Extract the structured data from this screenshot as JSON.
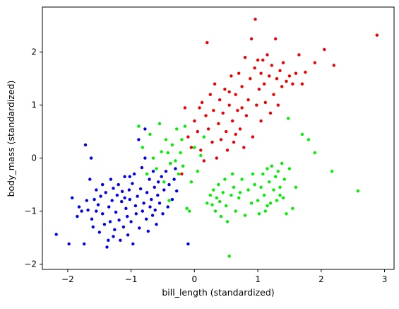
{
  "chart_data": {
    "type": "scatter",
    "title": "",
    "xlabel": "bill_length (standardized)",
    "ylabel": "body_mass (standardized)",
    "xlim": [
      -2.4,
      3.15
    ],
    "ylim": [
      -2.1,
      2.85
    ],
    "xticks": [
      -2,
      -1,
      0,
      1,
      2,
      3
    ],
    "yticks": [
      -2,
      -1,
      0,
      1,
      2
    ],
    "xtick_labels": [
      "−2",
      "−1",
      "0",
      "1",
      "2",
      "3"
    ],
    "ytick_labels": [
      "−2",
      "−1",
      "0",
      "1",
      "2"
    ],
    "grid": false,
    "legend": "none",
    "series": [
      {
        "color": "#0000ee",
        "points": [
          [
            -2.18,
            -1.44
          ],
          [
            -1.98,
            -1.62
          ],
          [
            -1.93,
            -0.75
          ],
          [
            -1.85,
            -1.1
          ],
          [
            -1.82,
            -0.92
          ],
          [
            -1.78,
            -1.0
          ],
          [
            -1.74,
            -1.62
          ],
          [
            -1.72,
            0.25
          ],
          [
            -1.7,
            -0.8
          ],
          [
            -1.68,
            -0.98
          ],
          [
            -1.65,
            -0.4
          ],
          [
            -1.63,
            0.0
          ],
          [
            -1.62,
            -1.15
          ],
          [
            -1.6,
            -1.3
          ],
          [
            -1.58,
            -0.78
          ],
          [
            -1.55,
            -1.0
          ],
          [
            -1.55,
            -0.6
          ],
          [
            -1.52,
            -0.88
          ],
          [
            -1.5,
            -1.4
          ],
          [
            -1.48,
            -0.72
          ],
          [
            -1.45,
            -1.05
          ],
          [
            -1.45,
            -0.5
          ],
          [
            -1.42,
            -1.25
          ],
          [
            -1.4,
            -0.65
          ],
          [
            -1.38,
            -1.68
          ],
          [
            -1.36,
            -1.55
          ],
          [
            -1.35,
            -0.92
          ],
          [
            -1.33,
            -1.2
          ],
          [
            -1.32,
            -0.4
          ],
          [
            -1.3,
            -0.8
          ],
          [
            -1.28,
            -1.48
          ],
          [
            -1.28,
            -0.57
          ],
          [
            -1.26,
            -1.35
          ],
          [
            -1.24,
            -1.02
          ],
          [
            -1.22,
            -0.7
          ],
          [
            -1.2,
            -0.5
          ],
          [
            -1.19,
            -1.17
          ],
          [
            -1.17,
            -1.55
          ],
          [
            -1.15,
            -0.82
          ],
          [
            -1.14,
            -0.63
          ],
          [
            -1.12,
            -1.3
          ],
          [
            -1.1,
            -0.35
          ],
          [
            -1.08,
            -0.95
          ],
          [
            -1.06,
            -1.1
          ],
          [
            -1.05,
            -1.45
          ],
          [
            -1.03,
            -0.6
          ],
          [
            -1.02,
            -0.78
          ],
          [
            -1.0,
            -1.2
          ],
          [
            -0.98,
            -0.48
          ],
          [
            -0.97,
            -1.62
          ],
          [
            -0.95,
            -0.3
          ],
          [
            -0.93,
            -0.9
          ],
          [
            -0.92,
            -1.05
          ],
          [
            -0.9,
            -0.72
          ],
          [
            -0.88,
            0.35
          ],
          [
            -0.87,
            -1.32
          ],
          [
            -0.85,
            -0.58
          ],
          [
            -0.83,
            -0.18
          ],
          [
            -0.82,
            -1.0
          ],
          [
            -0.8,
            -0.85
          ],
          [
            -0.78,
            0.0
          ],
          [
            -0.76,
            -1.15
          ],
          [
            -0.75,
            -0.65
          ],
          [
            -0.73,
            -1.38
          ],
          [
            -0.71,
            -0.4
          ],
          [
            -0.7,
            -0.92
          ],
          [
            -0.68,
            -0.78
          ],
          [
            -0.66,
            -1.08
          ],
          [
            -0.65,
            -0.25
          ],
          [
            -0.63,
            -0.55
          ],
          [
            -0.62,
            -0.98
          ],
          [
            -0.6,
            -1.25
          ],
          [
            -0.58,
            -0.7
          ],
          [
            -0.57,
            -0.45
          ],
          [
            -0.55,
            -0.85
          ],
          [
            -0.52,
            -0.35
          ],
          [
            -0.5,
            -1.05
          ],
          [
            -0.48,
            -0.6
          ],
          [
            -0.45,
            -0.25
          ],
          [
            -0.42,
            -0.92
          ],
          [
            -0.4,
            -0.5
          ],
          [
            -0.38,
            -0.1
          ],
          [
            -0.35,
            -0.78
          ],
          [
            -0.32,
            -0.4
          ],
          [
            -0.3,
            -0.2
          ],
          [
            -0.28,
            -0.62
          ],
          [
            -0.1,
            -1.62
          ],
          [
            -0.78,
            0.55
          ],
          [
            -1.02,
            -0.35
          ],
          [
            -1.1,
            -0.75
          ]
        ]
      },
      {
        "color": "#00ee00",
        "points": [
          [
            -0.88,
            0.6
          ],
          [
            -0.82,
            0.2
          ],
          [
            -0.75,
            -0.3
          ],
          [
            -0.7,
            0.45
          ],
          [
            -0.65,
            0.0
          ],
          [
            -0.6,
            -0.2
          ],
          [
            -0.55,
            0.65
          ],
          [
            -0.52,
            0.12
          ],
          [
            -0.48,
            -0.45
          ],
          [
            -0.45,
            0.35
          ],
          [
            -0.42,
            0.1
          ],
          [
            -0.4,
            -0.8
          ],
          [
            -0.38,
            -0.1
          ],
          [
            -0.35,
            0.25
          ],
          [
            -0.3,
            -0.05
          ],
          [
            -0.28,
            0.55
          ],
          [
            -0.25,
            -0.3
          ],
          [
            -0.22,
            0.1
          ],
          [
            -0.2,
            0.35
          ],
          [
            -0.18,
            -0.15
          ],
          [
            -0.15,
            0.6
          ],
          [
            -0.12,
            -0.95
          ],
          [
            -0.08,
            -1.0
          ],
          [
            -0.05,
            -0.45
          ],
          [
            0.0,
            0.2
          ],
          [
            0.05,
            -0.25
          ],
          [
            0.1,
            0.05
          ],
          [
            0.15,
            0.4
          ],
          [
            0.2,
            -0.85
          ],
          [
            0.25,
            -0.7
          ],
          [
            0.28,
            -0.88
          ],
          [
            0.3,
            -0.6
          ],
          [
            0.33,
            -1.0
          ],
          [
            0.35,
            -0.75
          ],
          [
            0.38,
            -0.5
          ],
          [
            0.4,
            -0.82
          ],
          [
            0.42,
            -1.1
          ],
          [
            0.45,
            -0.65
          ],
          [
            0.48,
            -0.4
          ],
          [
            0.5,
            -0.9
          ],
          [
            0.52,
            -1.2
          ],
          [
            0.55,
            -1.85
          ],
          [
            0.58,
            -0.7
          ],
          [
            0.6,
            -0.3
          ],
          [
            0.62,
            -0.55
          ],
          [
            0.65,
            -1.0
          ],
          [
            0.7,
            -0.75
          ],
          [
            0.75,
            -0.4
          ],
          [
            0.8,
            -1.08
          ],
          [
            0.85,
            -0.6
          ],
          [
            0.9,
            -0.85
          ],
          [
            0.92,
            -0.3
          ],
          [
            0.95,
            -0.5
          ],
          [
            1.0,
            -0.8
          ],
          [
            1.02,
            -1.05
          ],
          [
            1.05,
            -0.55
          ],
          [
            1.08,
            -0.3
          ],
          [
            1.1,
            -0.7
          ],
          [
            1.12,
            -1.0
          ],
          [
            1.15,
            -0.2
          ],
          [
            1.18,
            -0.45
          ],
          [
            1.2,
            -0.85
          ],
          [
            1.22,
            -0.15
          ],
          [
            1.25,
            -0.6
          ],
          [
            1.28,
            -0.35
          ],
          [
            1.3,
            -0.8
          ],
          [
            1.32,
            -0.25
          ],
          [
            1.35,
            -0.55
          ],
          [
            1.38,
            -0.1
          ],
          [
            1.4,
            -0.75
          ],
          [
            1.42,
            -0.4
          ],
          [
            1.45,
            -1.05
          ],
          [
            1.48,
            0.75
          ],
          [
            1.5,
            -0.2
          ],
          [
            1.55,
            -0.95
          ],
          [
            1.6,
            -0.55
          ],
          [
            1.7,
            0.45
          ],
          [
            1.8,
            0.35
          ],
          [
            1.9,
            0.1
          ],
          [
            2.17,
            -0.25
          ],
          [
            2.58,
            -0.62
          ],
          [
            1.35,
            -0.7
          ],
          [
            0.72,
            -0.65
          ],
          [
            1.15,
            -0.9
          ]
        ]
      },
      {
        "color": "#ee0000",
        "points": [
          [
            -0.2,
            -0.3
          ],
          [
            -0.15,
            0.95
          ],
          [
            -0.1,
            0.4
          ],
          [
            -0.05,
            0.2
          ],
          [
            0.0,
            0.7
          ],
          [
            0.05,
            0.5
          ],
          [
            0.08,
            0.95
          ],
          [
            0.1,
            0.15
          ],
          [
            0.12,
            1.05
          ],
          [
            0.15,
            -0.05
          ],
          [
            0.18,
            0.8
          ],
          [
            0.2,
            2.18
          ],
          [
            0.22,
            0.55
          ],
          [
            0.25,
            1.2
          ],
          [
            0.28,
            0.3
          ],
          [
            0.3,
            0.9
          ],
          [
            0.32,
            1.4
          ],
          [
            0.35,
            0.0
          ],
          [
            0.38,
            0.65
          ],
          [
            0.4,
            1.1
          ],
          [
            0.42,
            0.35
          ],
          [
            0.45,
            0.85
          ],
          [
            0.48,
            1.3
          ],
          [
            0.5,
            0.5
          ],
          [
            0.52,
            0.15
          ],
          [
            0.55,
            1.0
          ],
          [
            0.58,
            1.55
          ],
          [
            0.6,
            0.7
          ],
          [
            0.62,
            0.3
          ],
          [
            0.65,
            1.2
          ],
          [
            0.68,
            0.9
          ],
          [
            0.7,
            1.6
          ],
          [
            0.72,
            0.55
          ],
          [
            0.75,
            1.35
          ],
          [
            0.78,
            0.2
          ],
          [
            0.8,
            1.9
          ],
          [
            0.82,
            0.8
          ],
          [
            0.85,
            1.1
          ],
          [
            0.88,
            1.5
          ],
          [
            0.9,
            2.25
          ],
          [
            0.92,
            0.4
          ],
          [
            0.95,
            1.7
          ],
          [
            0.96,
            2.62
          ],
          [
            0.98,
            1.0
          ],
          [
            1.0,
            1.85
          ],
          [
            1.02,
            1.3
          ],
          [
            1.05,
            0.7
          ],
          [
            1.08,
            1.85
          ],
          [
            1.1,
            1.4
          ],
          [
            1.12,
            1.05
          ],
          [
            1.15,
            1.95
          ],
          [
            1.18,
            1.55
          ],
          [
            1.2,
            0.85
          ],
          [
            1.22,
            1.75
          ],
          [
            1.25,
            1.2
          ],
          [
            1.28,
            2.25
          ],
          [
            1.3,
            1.5
          ],
          [
            1.32,
            1.0
          ],
          [
            1.35,
            1.65
          ],
          [
            1.38,
            1.35
          ],
          [
            1.4,
            1.8
          ],
          [
            1.45,
            1.45
          ],
          [
            1.5,
            1.55
          ],
          [
            1.55,
            1.4
          ],
          [
            1.6,
            1.6
          ],
          [
            1.65,
            1.95
          ],
          [
            1.7,
            1.4
          ],
          [
            1.75,
            1.62
          ],
          [
            1.9,
            1.8
          ],
          [
            2.05,
            2.05
          ],
          [
            2.2,
            1.75
          ],
          [
            2.88,
            2.32
          ],
          [
            0.55,
            1.25
          ],
          [
            0.75,
            0.95
          ],
          [
            0.65,
            0.45
          ],
          [
            1.05,
            1.6
          ]
        ]
      }
    ]
  }
}
